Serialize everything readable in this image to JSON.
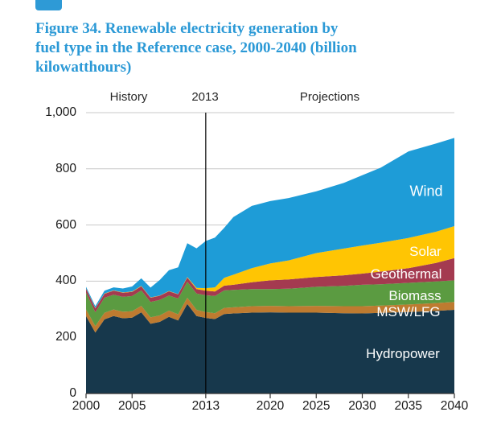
{
  "page": {
    "title_lines": [
      "Figure 34. Renewable electricity generation by",
      "fuel type in the Reference case, 2000-2040 (billion",
      "kilowatthours)"
    ],
    "title_color": "#2B99D6",
    "logo_fragment_color": "#2E9AD6"
  },
  "header": {
    "history_label": "History",
    "boundary_year_label": "2013",
    "projections_label": "Projections"
  },
  "chart_data": {
    "type": "area",
    "stacked": true,
    "title": "Figure 34. Renewable electricity generation by fuel type in the Reference case, 2000-2040 (billion kilowatthours)",
    "unit": "billion kilowatthours",
    "xlabel": "",
    "ylabel": "",
    "xlim": [
      2000,
      2040
    ],
    "ylim": [
      0,
      1000
    ],
    "grid": true,
    "legend_position": "labels inside plot areas",
    "history_boundary_year": 2013,
    "boundary_line_color": "#000000",
    "grid_color": "#c8c8c8",
    "axis_color": "#333333",
    "x": [
      2000,
      2001,
      2002,
      2003,
      2004,
      2005,
      2006,
      2007,
      2008,
      2009,
      2010,
      2011,
      2012,
      2013,
      2014,
      2015,
      2016,
      2018,
      2020,
      2022,
      2025,
      2028,
      2030,
      2032,
      2035,
      2038,
      2040
    ],
    "x_ticks": [
      {
        "value": 2000,
        "label": "2000"
      },
      {
        "value": 2005,
        "label": "2005"
      },
      {
        "value": 2013,
        "label": "2013"
      },
      {
        "value": 2020,
        "label": "2020"
      },
      {
        "value": 2025,
        "label": "2025"
      },
      {
        "value": 2030,
        "label": "2030"
      },
      {
        "value": 2035,
        "label": "2035"
      },
      {
        "value": 2040,
        "label": "2040"
      }
    ],
    "y_ticks": [
      {
        "value": 0,
        "label": "0"
      },
      {
        "value": 200,
        "label": "200"
      },
      {
        "value": 400,
        "label": "400"
      },
      {
        "value": 600,
        "label": "600"
      },
      {
        "value": 800,
        "label": "800"
      },
      {
        "value": 1000,
        "label": "1,000"
      }
    ],
    "series": [
      {
        "name": "Hydropower",
        "color": "#17384C",
        "values": [
          276,
          217,
          264,
          276,
          268,
          270,
          289,
          248,
          255,
          273,
          260,
          319,
          276,
          269,
          265,
          283,
          285,
          288,
          289,
          288,
          288,
          286,
          285,
          287,
          290,
          294,
          298
        ]
      },
      {
        "name": "MSW/LFG",
        "color": "#BE7B30",
        "values": [
          23,
          23,
          23,
          23,
          23,
          23,
          23,
          23,
          23,
          22,
          22,
          22,
          22,
          21,
          21,
          22,
          22,
          23,
          23,
          23,
          24,
          25,
          26,
          26,
          27,
          28,
          28
        ]
      },
      {
        "name": "Biomass",
        "color": "#5B9B41",
        "values": [
          60,
          49,
          54,
          53,
          53,
          54,
          55,
          55,
          55,
          54,
          56,
          57,
          58,
          60,
          61,
          62,
          62,
          61,
          60,
          62,
          68,
          72,
          76,
          76,
          77,
          77,
          77
        ]
      },
      {
        "name": "Geothermal",
        "color": "#A43A50",
        "values": [
          14,
          14,
          14,
          14,
          15,
          15,
          15,
          15,
          15,
          15,
          15,
          15,
          16,
          16,
          16,
          17,
          18,
          24,
          31,
          33,
          35,
          38,
          40,
          45,
          52,
          66,
          79
        ]
      },
      {
        "name": "Solar",
        "color": "#FFC503",
        "values": [
          1,
          1,
          1,
          1,
          1,
          1,
          1,
          1,
          1,
          1,
          1,
          2,
          4,
          9,
          15,
          28,
          36,
          50,
          60,
          68,
          85,
          95,
          100,
          103,
          108,
          111,
          114
        ]
      },
      {
        "name": "Wind",
        "color": "#1E9CD7",
        "values": [
          6,
          7,
          10,
          11,
          14,
          18,
          27,
          35,
          55,
          74,
          95,
          120,
          141,
          168,
          177,
          178,
          205,
          222,
          222,
          222,
          220,
          234,
          250,
          267,
          308,
          314,
          314
        ]
      }
    ]
  }
}
